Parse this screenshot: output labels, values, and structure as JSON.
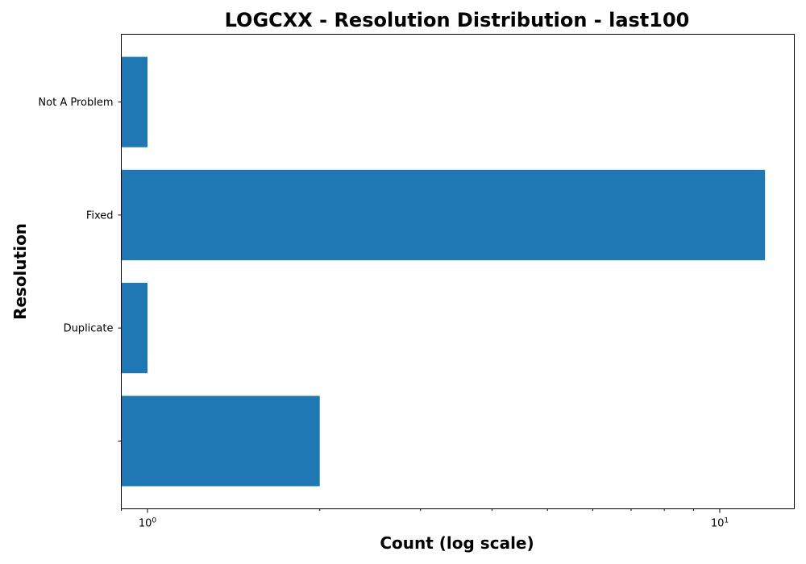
{
  "chart_data": {
    "type": "bar",
    "orientation": "horizontal",
    "title": "LOGCXX - Resolution Distribution - last100",
    "xlabel": "Count (log scale)",
    "ylabel": "Resolution",
    "x_scale": "log",
    "xlim": [
      0.9,
      13.5
    ],
    "x_major_ticks": [
      {
        "value": 1,
        "base": "10",
        "exponent": "0"
      },
      {
        "value": 10,
        "base": "10",
        "exponent": "1"
      }
    ],
    "categories": [
      "",
      "Duplicate",
      "Fixed",
      "Not A Problem"
    ],
    "values": [
      2,
      1,
      12,
      1
    ],
    "bar_color": "#1f77b4",
    "grid": false
  }
}
